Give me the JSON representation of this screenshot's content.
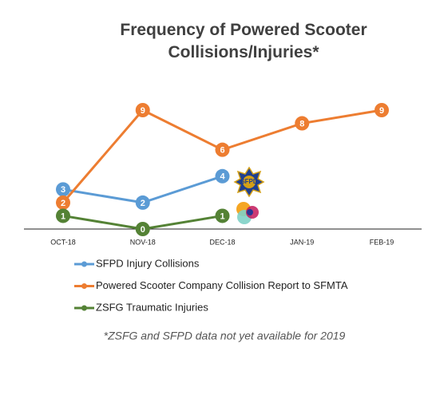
{
  "chart_data": {
    "type": "line",
    "title": "Frequency of Powered Scooter Collisions/Injuries*",
    "categories": [
      "OCT-18",
      "NOV-18",
      "DEC-18",
      "JAN-19",
      "FEB-19"
    ],
    "series": [
      {
        "name": "SFPD Injury Collisions",
        "color": "#5b9bd5",
        "values": [
          3,
          2,
          4,
          null,
          null
        ]
      },
      {
        "name": "Powered Scooter Company Collision Report to SFMTA",
        "color": "#ed7d31",
        "values": [
          2,
          9,
          6,
          8,
          9
        ]
      },
      {
        "name": "ZSFG Traumatic Injuries",
        "color": "#548235",
        "values": [
          1,
          0,
          1,
          null,
          null
        ]
      }
    ],
    "annotations": [
      "SFPD"
    ],
    "note": "*ZSFG and SFPD data not yet available for 2019"
  }
}
